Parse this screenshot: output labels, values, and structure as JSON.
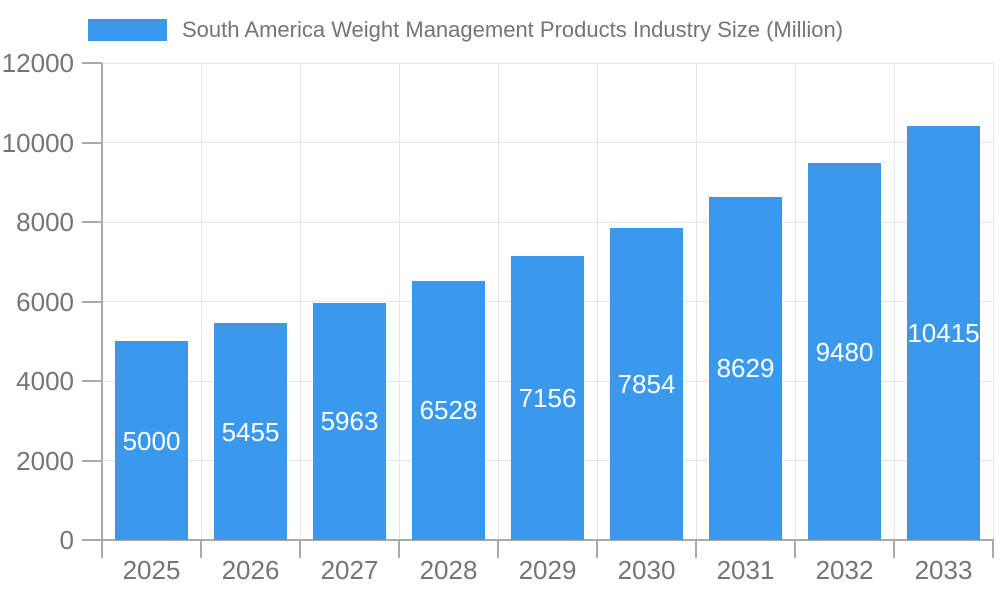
{
  "legend": {
    "label": "South America Weight Management Products Industry Size (Million)"
  },
  "chart_data": {
    "type": "bar",
    "title": "South America Weight Management Products Industry Size (Million)",
    "categories": [
      "2025",
      "2026",
      "2027",
      "2028",
      "2029",
      "2030",
      "2031",
      "2032",
      "2033"
    ],
    "values": [
      5000,
      5455,
      5963,
      6528,
      7156,
      7854,
      8629,
      9480,
      10415
    ],
    "xlabel": "",
    "ylabel": "",
    "ylim": [
      0,
      12000
    ],
    "yticks": [
      0,
      2000,
      4000,
      6000,
      8000,
      10000,
      12000
    ],
    "grid": true,
    "legend_position": "top-left",
    "value_labels": "inside-center",
    "colors": {
      "bar": "#3A99EC",
      "grid": "#E6E6E6",
      "axis": "#AAAAAA",
      "text": "#757575",
      "value_label": "#FFFFFF"
    }
  }
}
